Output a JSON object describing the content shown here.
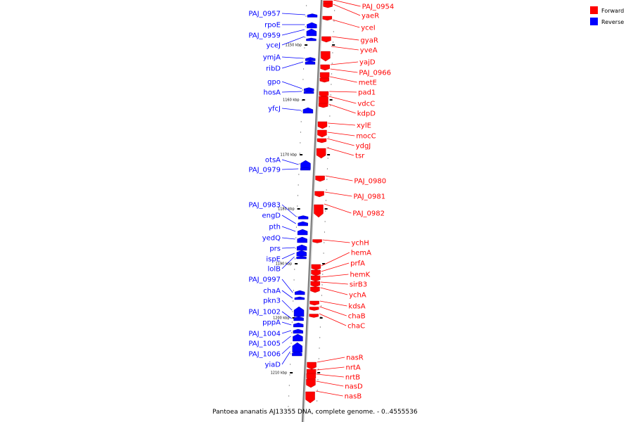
{
  "caption": "Pantoea ananatis AJ13355 DNA, complete genome. - 0..4555536",
  "legend": [
    {
      "label": "Forward",
      "color": "#ff0000"
    },
    {
      "label": "Reverse",
      "color": "#0000ff"
    }
  ],
  "colors": {
    "forward": "#ff0000",
    "reverse": "#0000ff",
    "backbone": "#7f7f7f"
  },
  "ticks": [
    "1150 kbp",
    "1160 kbp",
    "1170 kbp",
    "1180 kbp",
    "1190 kbp",
    "1200 kbp",
    "1210 kbp"
  ],
  "forward_genes": [
    "PAJ_0954",
    "yaeR",
    "yceI",
    "gyaR",
    "yveA",
    "yajD",
    "PAJ_0966",
    "metE",
    "pad1",
    "vdcC",
    "kdpD",
    "xylE",
    "mocC",
    "ydgJ",
    "tsr",
    "PAJ_0980",
    "PAJ_0981",
    "PAJ_0982",
    "ychH",
    "hemA",
    "prfA",
    "hemK",
    "sirB3",
    "ychA",
    "kdsA",
    "chaB",
    "chaC",
    "nasR",
    "nrtA",
    "nrtB",
    "nasD",
    "nasB"
  ],
  "reverse_genes": [
    "PAJ_0957",
    "rpoE",
    "PAJ_0959",
    "yceJ",
    "ymjA",
    "ribD",
    "gpo",
    "hosA",
    "yfcJ",
    "otsA",
    "PAJ_0979",
    "PAJ_0983",
    "engD",
    "pth",
    "yedQ",
    "prs",
    "ispE",
    "lolB",
    "PAJ_0997",
    "chaA",
    "pkn3",
    "PAJ_1002",
    "pppA",
    "PAJ_1004",
    "PAJ_1005",
    "PAJ_1006",
    "yiaD"
  ]
}
